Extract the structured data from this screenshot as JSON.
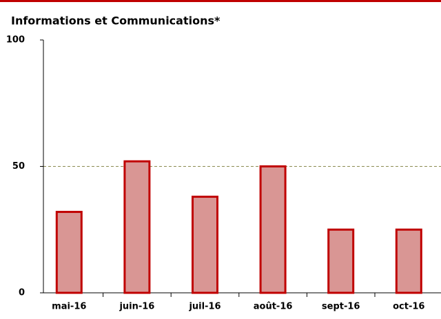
{
  "chart_data": {
    "type": "bar",
    "title": "Informations et Communications*",
    "categories": [
      "mai-16",
      "juin-16",
      "juil-16",
      "août-16",
      "sept-16",
      "oct-16"
    ],
    "values": [
      32,
      52,
      38,
      50,
      25,
      25
    ],
    "color": "#d99694",
    "edge_color": "#c00000",
    "ylim": [
      0,
      100
    ],
    "yticks": [
      0,
      50,
      100
    ],
    "reference_line": 50
  }
}
